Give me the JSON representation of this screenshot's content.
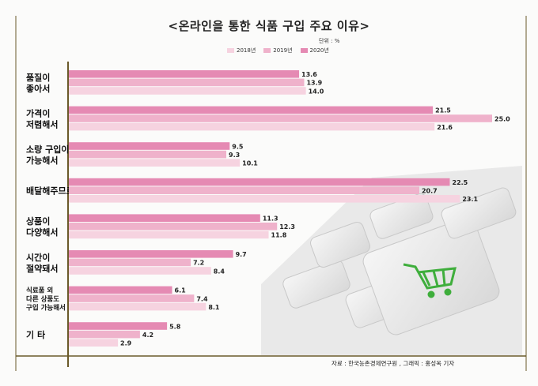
{
  "chart_data": {
    "type": "bar",
    "orientation": "horizontal",
    "title": "<온라인을 통한 식품 구입 주요 이유>",
    "unit": "단위 : %",
    "categories": [
      [
        "품질이",
        "좋아서"
      ],
      [
        "가격이",
        "저렴해서"
      ],
      [
        "소량 구입이",
        "가능해서"
      ],
      [
        "배달해주므로"
      ],
      [
        "상품이",
        "다양해서"
      ],
      [
        "시간이",
        "절약돼서"
      ],
      [
        "식료품 외",
        "다른 상품도",
        "구입 가능해서"
      ],
      [
        "기   타"
      ]
    ],
    "series": [
      {
        "name": "2018년",
        "color": "#e58ab3",
        "values": [
          13.6,
          21.5,
          9.5,
          22.5,
          11.3,
          9.7,
          6.1,
          5.8
        ]
      },
      {
        "name": "2019년",
        "color": "#efb2cb",
        "values": [
          13.9,
          25.0,
          9.3,
          20.7,
          12.3,
          7.2,
          7.4,
          4.2
        ]
      },
      {
        "name": "2020년",
        "color": "#f6d3e0",
        "values": [
          14.0,
          21.6,
          10.1,
          23.1,
          11.8,
          8.4,
          8.1,
          2.9
        ]
      }
    ],
    "value_labels": [
      [
        "13.6",
        "13.9",
        "14.0"
      ],
      [
        "21.5",
        "25.0",
        "21.6"
      ],
      [
        "9.5",
        "9.3",
        "10.1"
      ],
      [
        "22.5",
        "20.7",
        "23.1"
      ],
      [
        "11.3",
        "12.3",
        "11.8"
      ],
      [
        "9.7",
        "7.2",
        "8.4"
      ],
      [
        "6.1",
        "7.4",
        "8.1"
      ],
      [
        "5.8",
        "4.2",
        "2.9"
      ]
    ],
    "legend": [
      "2018년",
      "2019년",
      "2020년"
    ],
    "legend_placement": "top",
    "xlim": [
      0,
      25
    ],
    "grid": false
  },
  "source": "자료 : 한국농촌경제연구원 , 그래픽 : 홍성옥 기자",
  "colors": {
    "axis": "#6a5a2a",
    "frame": "#6a5a2a",
    "cart": "#3fae3c"
  },
  "icons": [
    "shopping-cart-icon",
    "keyboard-image"
  ]
}
